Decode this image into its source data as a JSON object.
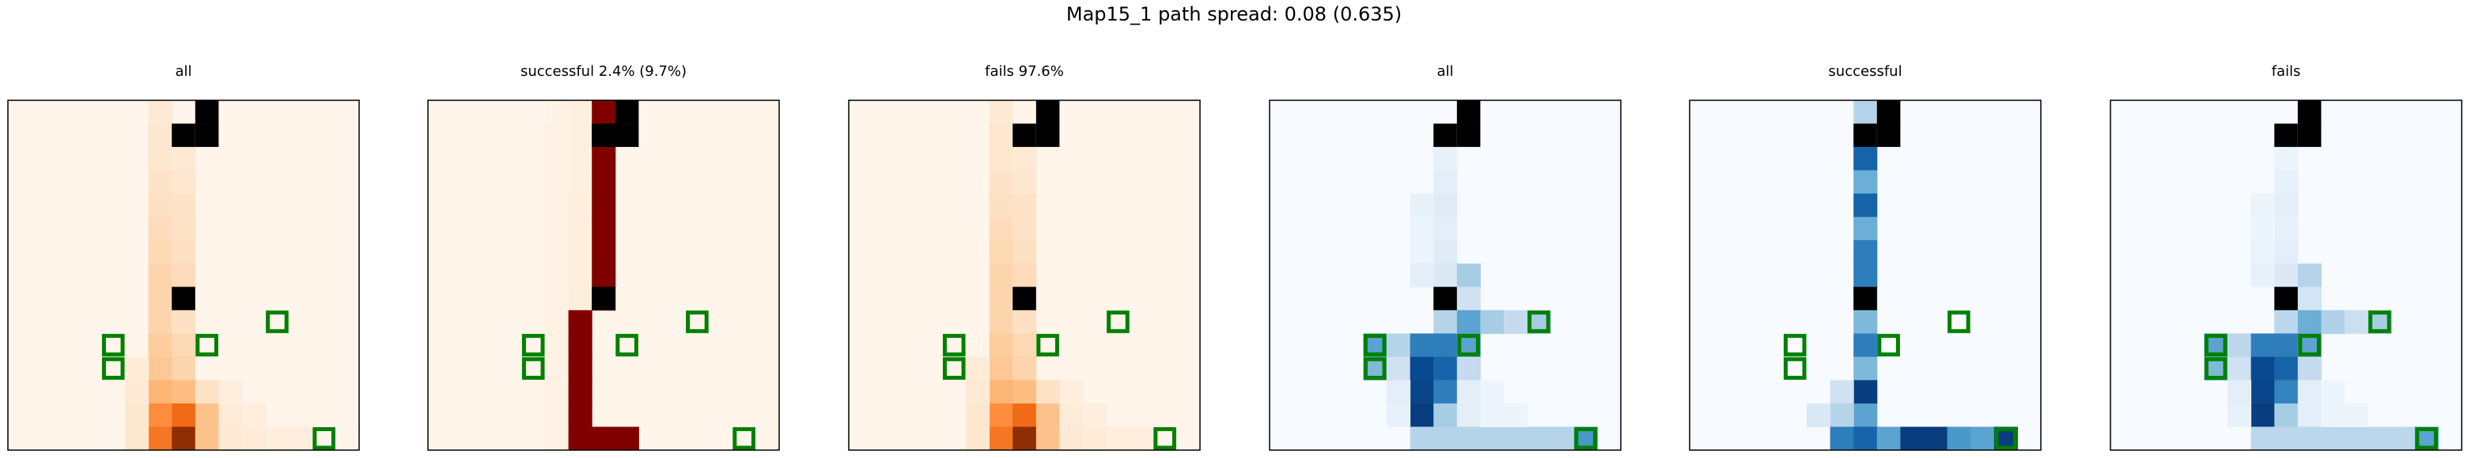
{
  "figure_title": "Map15_1 path spread: 0.08 (0.635)",
  "colors": {
    "goal_marker": "#008000",
    "obstacle": "#000000",
    "frame": "#000000",
    "oranges_cmap": [
      "#fff5eb",
      "#fee6ce",
      "#fdd0a2",
      "#fdae6b",
      "#fd8d3c",
      "#f16913",
      "#d94801",
      "#a63603",
      "#7f2704"
    ],
    "reds_saturated": "#800000",
    "blues_cmap": [
      "#f7fbff",
      "#deebf7",
      "#c6dbef",
      "#9ecae1",
      "#6baed6",
      "#4292c6",
      "#2171b5",
      "#08519c",
      "#08306b"
    ]
  },
  "chart_data": [
    {
      "type": "heatmap",
      "title": "all",
      "cmap": "oranges",
      "grid_size": 15,
      "obstacles": [
        [
          7,
          1
        ],
        [
          7,
          8
        ],
        [
          8,
          0
        ],
        [
          8,
          1
        ]
      ],
      "goal_markers": [
        [
          4,
          10
        ],
        [
          4,
          11
        ],
        [
          8,
          10
        ],
        [
          11,
          9
        ],
        [
          13,
          14
        ]
      ],
      "cells": [
        [
          6,
          0,
          0.1
        ],
        [
          6,
          1,
          0.12
        ],
        [
          6,
          2,
          0.12
        ],
        [
          6,
          3,
          0.14
        ],
        [
          6,
          4,
          0.16
        ],
        [
          6,
          5,
          0.18
        ],
        [
          6,
          6,
          0.2
        ],
        [
          6,
          7,
          0.22
        ],
        [
          6,
          8,
          0.22
        ],
        [
          6,
          9,
          0.22
        ],
        [
          6,
          10,
          0.26
        ],
        [
          6,
          11,
          0.28
        ],
        [
          6,
          12,
          0.35
        ],
        [
          6,
          13,
          0.5
        ],
        [
          6,
          14,
          0.58
        ],
        [
          7,
          2,
          0.1
        ],
        [
          7,
          3,
          0.12
        ],
        [
          7,
          4,
          0.14
        ],
        [
          7,
          5,
          0.15
        ],
        [
          7,
          6,
          0.16
        ],
        [
          7,
          7,
          0.18
        ],
        [
          7,
          9,
          0.16
        ],
        [
          7,
          10,
          0.2
        ],
        [
          7,
          11,
          0.22
        ],
        [
          7,
          12,
          0.32
        ],
        [
          7,
          13,
          0.62
        ],
        [
          7,
          14,
          0.95
        ],
        [
          8,
          12,
          0.15
        ],
        [
          8,
          13,
          0.3
        ],
        [
          8,
          14,
          0.3
        ],
        [
          5,
          11,
          0.08
        ],
        [
          5,
          12,
          0.1
        ],
        [
          5,
          13,
          0.12
        ],
        [
          5,
          14,
          0.12
        ],
        [
          9,
          12,
          0.06
        ],
        [
          9,
          13,
          0.08
        ],
        [
          9,
          14,
          0.1
        ],
        [
          10,
          13,
          0.06
        ],
        [
          10,
          14,
          0.08
        ],
        [
          11,
          14,
          0.06
        ],
        [
          12,
          14,
          0.06
        ]
      ]
    },
    {
      "type": "heatmap",
      "title": "successful 2.4% (9.7%)",
      "cmap": "reds_saturated",
      "grid_size": 15,
      "obstacles": [
        [
          7,
          1
        ],
        [
          7,
          8
        ],
        [
          8,
          0
        ],
        [
          8,
          1
        ]
      ],
      "goal_markers": [
        [
          4,
          10
        ],
        [
          4,
          11
        ],
        [
          8,
          10
        ],
        [
          11,
          9
        ],
        [
          13,
          14
        ]
      ],
      "path_cells": [
        [
          7,
          0
        ],
        [
          7,
          1
        ],
        [
          7,
          2
        ],
        [
          7,
          3
        ],
        [
          7,
          4
        ],
        [
          7,
          5
        ],
        [
          7,
          6
        ],
        [
          7,
          7
        ],
        [
          7,
          8
        ],
        [
          6,
          9
        ],
        [
          6,
          10
        ],
        [
          6,
          11
        ],
        [
          6,
          12
        ],
        [
          6,
          13
        ],
        [
          6,
          14
        ],
        [
          7,
          14
        ],
        [
          8,
          14
        ]
      ],
      "background_cells": [
        [
          6,
          0,
          0.05
        ],
        [
          6,
          1,
          0.05
        ],
        [
          6,
          2,
          0.05
        ],
        [
          6,
          3,
          0.05
        ],
        [
          6,
          4,
          0.06
        ],
        [
          6,
          5,
          0.06
        ],
        [
          6,
          6,
          0.06
        ],
        [
          6,
          7,
          0.06
        ],
        [
          6,
          8,
          0.07
        ],
        [
          5,
          0,
          0.02
        ],
        [
          5,
          1,
          0.03
        ],
        [
          5,
          2,
          0.03
        ],
        [
          5,
          3,
          0.03
        ],
        [
          5,
          4,
          0.03
        ],
        [
          5,
          5,
          0.03
        ],
        [
          5,
          6,
          0.03
        ],
        [
          5,
          7,
          0.03
        ],
        [
          5,
          8,
          0.03
        ],
        [
          5,
          9,
          0.03
        ],
        [
          5,
          10,
          0.03
        ],
        [
          5,
          11,
          0.03
        ],
        [
          5,
          12,
          0.03
        ],
        [
          5,
          13,
          0.03
        ],
        [
          5,
          14,
          0.03
        ]
      ]
    },
    {
      "type": "heatmap",
      "title": "fails 97.6%",
      "cmap": "oranges",
      "grid_size": 15,
      "obstacles": [
        [
          7,
          1
        ],
        [
          7,
          8
        ],
        [
          8,
          0
        ],
        [
          8,
          1
        ]
      ],
      "goal_markers": [
        [
          4,
          10
        ],
        [
          4,
          11
        ],
        [
          8,
          10
        ],
        [
          11,
          9
        ],
        [
          13,
          14
        ]
      ],
      "cells": [
        [
          6,
          0,
          0.1
        ],
        [
          6,
          1,
          0.12
        ],
        [
          6,
          2,
          0.12
        ],
        [
          6,
          3,
          0.14
        ],
        [
          6,
          4,
          0.16
        ],
        [
          6,
          5,
          0.18
        ],
        [
          6,
          6,
          0.2
        ],
        [
          6,
          7,
          0.22
        ],
        [
          6,
          8,
          0.22
        ],
        [
          6,
          9,
          0.22
        ],
        [
          6,
          10,
          0.26
        ],
        [
          6,
          11,
          0.28
        ],
        [
          6,
          12,
          0.35
        ],
        [
          6,
          13,
          0.5
        ],
        [
          6,
          14,
          0.58
        ],
        [
          7,
          2,
          0.1
        ],
        [
          7,
          3,
          0.12
        ],
        [
          7,
          4,
          0.14
        ],
        [
          7,
          5,
          0.15
        ],
        [
          7,
          6,
          0.16
        ],
        [
          7,
          7,
          0.18
        ],
        [
          7,
          9,
          0.16
        ],
        [
          7,
          10,
          0.2
        ],
        [
          7,
          11,
          0.22
        ],
        [
          7,
          12,
          0.32
        ],
        [
          7,
          13,
          0.62
        ],
        [
          7,
          14,
          0.95
        ],
        [
          8,
          12,
          0.15
        ],
        [
          8,
          13,
          0.3
        ],
        [
          8,
          14,
          0.3
        ],
        [
          5,
          11,
          0.08
        ],
        [
          5,
          12,
          0.1
        ],
        [
          5,
          13,
          0.12
        ],
        [
          5,
          14,
          0.12
        ],
        [
          9,
          12,
          0.06
        ],
        [
          9,
          13,
          0.08
        ],
        [
          9,
          14,
          0.1
        ],
        [
          10,
          13,
          0.06
        ],
        [
          10,
          14,
          0.08
        ],
        [
          11,
          14,
          0.06
        ],
        [
          12,
          14,
          0.06
        ]
      ]
    },
    {
      "type": "heatmap",
      "title": "all",
      "cmap": "blues",
      "grid_size": 15,
      "obstacles": [
        [
          7,
          1
        ],
        [
          7,
          8
        ],
        [
          8,
          0
        ],
        [
          8,
          1
        ]
      ],
      "goal_markers": [
        [
          4,
          10
        ],
        [
          4,
          11
        ],
        [
          8,
          10
        ],
        [
          11,
          9
        ],
        [
          13,
          14
        ]
      ],
      "cells": [
        [
          7,
          2,
          0.08
        ],
        [
          7,
          3,
          0.1
        ],
        [
          7,
          4,
          0.12
        ],
        [
          6,
          4,
          0.08
        ],
        [
          7,
          5,
          0.1
        ],
        [
          6,
          5,
          0.06
        ],
        [
          7,
          6,
          0.12
        ],
        [
          6,
          6,
          0.06
        ],
        [
          7,
          7,
          0.15
        ],
        [
          6,
          7,
          0.1
        ],
        [
          8,
          7,
          0.35
        ],
        [
          8,
          8,
          0.2
        ],
        [
          7,
          9,
          0.3
        ],
        [
          8,
          9,
          0.55
        ],
        [
          9,
          9,
          0.35
        ],
        [
          10,
          9,
          0.25
        ],
        [
          11,
          9,
          0.35
        ],
        [
          4,
          10,
          0.55
        ],
        [
          4,
          11,
          0.45
        ],
        [
          5,
          10,
          0.3
        ],
        [
          5,
          11,
          0.2
        ],
        [
          6,
          10,
          0.7
        ],
        [
          6,
          11,
          0.9
        ],
        [
          7,
          10,
          0.7
        ],
        [
          7,
          11,
          0.8
        ],
        [
          8,
          10,
          0.55
        ],
        [
          8,
          11,
          0.25
        ],
        [
          6,
          12,
          0.92
        ],
        [
          6,
          13,
          0.95
        ],
        [
          7,
          12,
          0.7
        ],
        [
          7,
          13,
          0.35
        ],
        [
          5,
          12,
          0.1
        ],
        [
          5,
          13,
          0.08
        ],
        [
          6,
          14,
          0.3
        ],
        [
          7,
          14,
          0.3
        ],
        [
          8,
          12,
          0.1
        ],
        [
          8,
          13,
          0.1
        ],
        [
          8,
          14,
          0.3
        ],
        [
          9,
          14,
          0.3
        ],
        [
          10,
          14,
          0.3
        ],
        [
          11,
          14,
          0.3
        ],
        [
          12,
          14,
          0.3
        ],
        [
          13,
          14,
          0.6
        ],
        [
          9,
          12,
          0.05
        ],
        [
          9,
          13,
          0.05
        ],
        [
          10,
          13,
          0.05
        ]
      ]
    },
    {
      "type": "heatmap",
      "title": "successful",
      "cmap": "blues",
      "grid_size": 15,
      "obstacles": [
        [
          7,
          1
        ],
        [
          7,
          8
        ],
        [
          8,
          0
        ],
        [
          8,
          1
        ]
      ],
      "goal_markers": [
        [
          4,
          10
        ],
        [
          4,
          11
        ],
        [
          8,
          10
        ],
        [
          11,
          9
        ],
        [
          13,
          14
        ]
      ],
      "cells": [
        [
          7,
          0,
          0.3
        ],
        [
          7,
          1,
          0.3
        ],
        [
          7,
          2,
          0.8
        ],
        [
          7,
          3,
          0.5
        ],
        [
          7,
          4,
          0.8
        ],
        [
          7,
          5,
          0.5
        ],
        [
          7,
          6,
          0.7
        ],
        [
          7,
          7,
          0.7
        ],
        [
          7,
          8,
          0.55
        ],
        [
          7,
          9,
          0.45
        ],
        [
          7,
          10,
          0.7
        ],
        [
          7,
          11,
          0.45
        ],
        [
          7,
          12,
          0.95
        ],
        [
          7,
          13,
          0.55
        ],
        [
          6,
          12,
          0.2
        ],
        [
          6,
          13,
          0.3
        ],
        [
          5,
          13,
          0.15
        ],
        [
          6,
          14,
          0.7
        ],
        [
          7,
          14,
          0.8
        ],
        [
          8,
          14,
          0.55
        ],
        [
          9,
          14,
          0.95
        ],
        [
          10,
          14,
          0.95
        ],
        [
          11,
          14,
          0.6
        ],
        [
          12,
          14,
          0.55
        ],
        [
          13,
          14,
          0.95
        ]
      ]
    },
    {
      "type": "heatmap",
      "title": "fails",
      "cmap": "blues",
      "grid_size": 15,
      "obstacles": [
        [
          7,
          1
        ],
        [
          7,
          8
        ],
        [
          8,
          0
        ],
        [
          8,
          1
        ]
      ],
      "goal_markers": [
        [
          4,
          10
        ],
        [
          4,
          11
        ],
        [
          8,
          10
        ],
        [
          11,
          9
        ],
        [
          13,
          14
        ]
      ],
      "cells": [
        [
          7,
          2,
          0.06
        ],
        [
          7,
          3,
          0.08
        ],
        [
          7,
          4,
          0.1
        ],
        [
          6,
          4,
          0.06
        ],
        [
          7,
          5,
          0.08
        ],
        [
          6,
          5,
          0.05
        ],
        [
          7,
          6,
          0.1
        ],
        [
          6,
          6,
          0.06
        ],
        [
          7,
          7,
          0.14
        ],
        [
          6,
          7,
          0.08
        ],
        [
          8,
          7,
          0.3
        ],
        [
          8,
          8,
          0.18
        ],
        [
          7,
          9,
          0.28
        ],
        [
          8,
          9,
          0.5
        ],
        [
          9,
          9,
          0.32
        ],
        [
          10,
          9,
          0.22
        ],
        [
          11,
          9,
          0.35
        ],
        [
          4,
          10,
          0.55
        ],
        [
          4,
          11,
          0.45
        ],
        [
          5,
          10,
          0.28
        ],
        [
          5,
          11,
          0.2
        ],
        [
          6,
          10,
          0.7
        ],
        [
          6,
          11,
          0.9
        ],
        [
          7,
          10,
          0.7
        ],
        [
          7,
          11,
          0.8
        ],
        [
          8,
          10,
          0.55
        ],
        [
          8,
          11,
          0.25
        ],
        [
          6,
          12,
          0.92
        ],
        [
          6,
          13,
          0.95
        ],
        [
          7,
          12,
          0.68
        ],
        [
          7,
          13,
          0.35
        ],
        [
          5,
          12,
          0.1
        ],
        [
          5,
          13,
          0.08
        ],
        [
          6,
          14,
          0.28
        ],
        [
          7,
          14,
          0.28
        ],
        [
          8,
          12,
          0.1
        ],
        [
          8,
          13,
          0.1
        ],
        [
          8,
          14,
          0.28
        ],
        [
          9,
          14,
          0.28
        ],
        [
          10,
          14,
          0.28
        ],
        [
          11,
          14,
          0.28
        ],
        [
          12,
          14,
          0.28
        ],
        [
          13,
          14,
          0.55
        ],
        [
          9,
          12,
          0.05
        ],
        [
          9,
          13,
          0.05
        ],
        [
          10,
          13,
          0.05
        ]
      ]
    }
  ]
}
